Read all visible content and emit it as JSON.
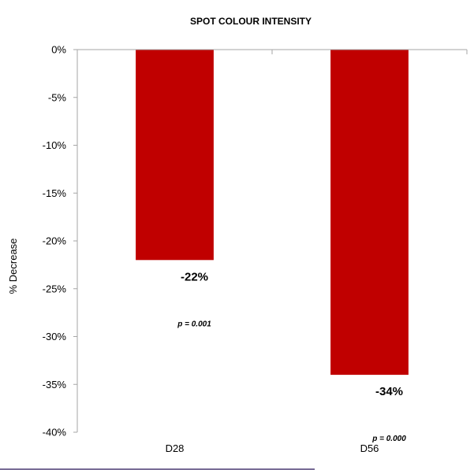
{
  "chart_data": {
    "type": "bar",
    "title": "SPOT COLOUR INTENSITY",
    "xlabel": "",
    "ylabel": "% Decrease",
    "categories": [
      "D28",
      "D56"
    ],
    "values": [
      -22,
      -34
    ],
    "ylim": [
      -40,
      0
    ],
    "y_tick_step": 5,
    "y_tick_labels": [
      "0%",
      "-5%",
      "-10%",
      "-15%",
      "-20%",
      "-25%",
      "-30%",
      "-35%",
      "-40%"
    ],
    "data_labels": [
      "-22%",
      "-34%"
    ],
    "annotations": [
      "p = 0.001",
      "p = 0.000"
    ],
    "grid": false,
    "legend": "none",
    "bar_color": "#C00000",
    "axis_color": "#A6A6A6",
    "footer_line_color": "#4B3B73"
  }
}
